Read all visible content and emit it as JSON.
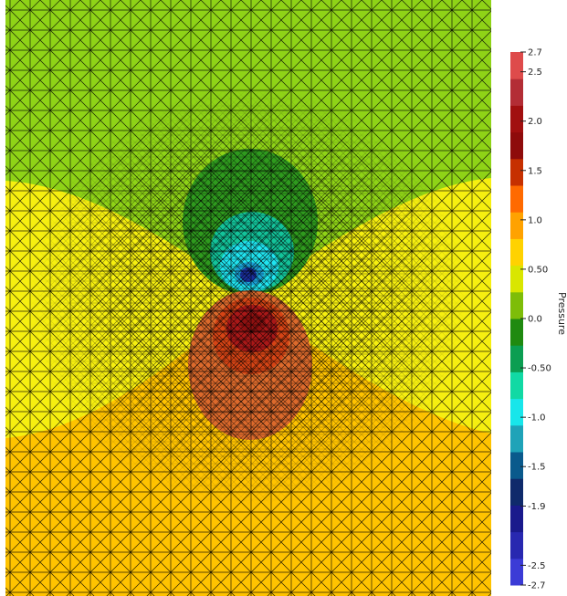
{
  "colorbar": {
    "title": "Pressure",
    "labels": [
      {
        "text": "2.7",
        "value": 2.7
      },
      {
        "text": "2.5",
        "value": 2.5
      },
      {
        "text": "2.0",
        "value": 2.0
      },
      {
        "text": "1.5",
        "value": 1.5
      },
      {
        "text": "1.0",
        "value": 1.0
      },
      {
        "text": "0.50",
        "value": 0.5
      },
      {
        "text": "0.0",
        "value": 0.0
      },
      {
        "text": "-0.50",
        "value": -0.5
      },
      {
        "text": "-1.0",
        "value": -1.0
      },
      {
        "text": "-1.5",
        "value": -1.5
      },
      {
        "text": "-1.9",
        "value": -1.9
      },
      {
        "text": "-2.5",
        "value": -2.5
      },
      {
        "text": "-2.7",
        "value": -2.7
      }
    ],
    "range": [
      -2.7,
      2.7
    ],
    "band_colors": [
      "#3b3bd6",
      "#2828b0",
      "#1a1a8c",
      "#0f2a6b",
      "#0a5a8c",
      "#1fa3b8",
      "#18e6ea",
      "#11d9a4",
      "#0b9e52",
      "#1f8a10",
      "#7ebd08",
      "#d9e600",
      "#ffd200",
      "#ffa200",
      "#ff6a00",
      "#c63000",
      "#8e0b0b",
      "#a10f0f",
      "#b32d35",
      "#de4b4b"
    ]
  },
  "field": {
    "far_top_color": "#8fd317",
    "far_mid_color": "#f6ef10",
    "far_bottom_color": "#ffc300",
    "dipole_negative_colors": [
      "#2f9a1e",
      "#13c39a",
      "#20e4f0",
      "#1aa0d4",
      "#1a2f9c"
    ],
    "dipole_positive_colors": [
      "#dc6a2c",
      "#d64415",
      "#a91818",
      "#8e1010",
      "#c0303a"
    ],
    "mesh_color": "#000000"
  }
}
